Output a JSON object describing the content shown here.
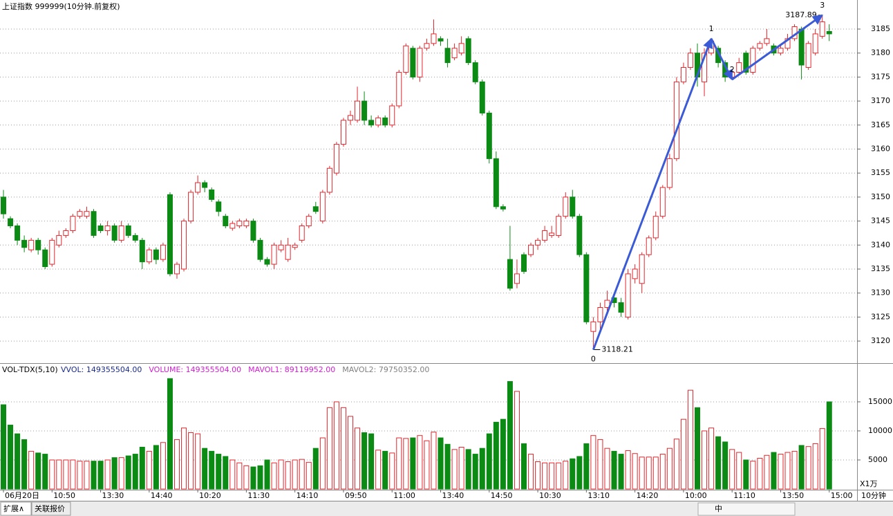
{
  "chart_data": {
    "type": "candlestick",
    "title": "上证指数 999999(10分钟.前复权)",
    "categories": [
      "06月20日",
      null,
      null,
      null,
      null,
      null,
      null,
      "10:50",
      null,
      null,
      null,
      null,
      null,
      null,
      "13:30",
      null,
      null,
      null,
      null,
      null,
      null,
      "14:40",
      null,
      null,
      null,
      null,
      null,
      null,
      "10:20",
      null,
      null,
      null,
      null,
      null,
      null,
      "11:30",
      null,
      null,
      null,
      null,
      null,
      null,
      "14:10",
      null,
      null,
      null,
      null,
      null,
      null,
      "09:50",
      null,
      null,
      null,
      null,
      null,
      null,
      "11:00",
      null,
      null,
      null,
      null,
      null,
      null,
      "13:40",
      null,
      null,
      null,
      null,
      null,
      null,
      "14:50",
      null,
      null,
      null,
      null,
      null,
      null,
      "10:30",
      null,
      null,
      null,
      null,
      null,
      null,
      "13:10",
      null,
      null,
      null,
      null,
      null,
      null,
      "14:20",
      null,
      null,
      null,
      null,
      null,
      null,
      "10:00",
      null,
      null,
      null,
      null,
      null,
      null,
      "11:10",
      null,
      null,
      null,
      null,
      null,
      null,
      "13:50",
      null,
      null,
      null,
      null,
      null,
      null,
      "15:00"
    ],
    "open": [
      3150,
      3145.5,
      3144,
      3141,
      3139,
      3141,
      3139,
      3136,
      3140,
      3142,
      3143,
      3146,
      3146,
      3147,
      3144,
      3143,
      3144,
      3141,
      3144,
      3142,
      3141,
      3136.5,
      3139,
      3137,
      3150.5,
      3134,
      3135,
      3145,
      3151,
      3153,
      3151.5,
      3149,
      3146,
      3143.5,
      3144,
      3144,
      3145,
      3141,
      3137,
      3136,
      3139,
      3137,
      3139.5,
      3141,
      3144,
      3148,
      3145,
      3151,
      3155,
      3161,
      3166,
      3166,
      3170,
      3166,
      3165,
      3166.5,
      3165,
      3169,
      3176,
      3181,
      3175,
      3181,
      3182,
      3183,
      3181,
      3179,
      3180,
      3183,
      3178,
      3174,
      3167.5,
      3158,
      3148,
      3137,
      3132,
      3138,
      3138,
      3140,
      3141,
      3142,
      3142,
      3146,
      3150,
      3146,
      3138,
      3122,
      3124,
      3127,
      3129,
      3128,
      3125,
      3133,
      3132,
      3138,
      3141.5,
      3146,
      3152,
      3158,
      3174,
      3177,
      3180,
      3174,
      3180,
      3181,
      3178,
      3175,
      3176,
      3180,
      3176,
      3181,
      3182,
      3181.5,
      3180,
      3181,
      3183,
      3185,
      3177,
      3180,
      3183.5,
      3184.5
    ],
    "high": [
      3151.5,
      3146,
      3144.5,
      3142,
      3141.5,
      3141.5,
      3139.5,
      3141.5,
      3143,
      3143.5,
      3146.5,
      3147.5,
      3148,
      3147.5,
      3144.5,
      3145,
      3144.5,
      3145,
      3144.5,
      3142.5,
      3141.5,
      3139.5,
      3139.5,
      3140.5,
      3151,
      3136.5,
      3145.5,
      3151.5,
      3154.5,
      3153.5,
      3152,
      3149.5,
      3146.5,
      3145,
      3145.5,
      3145.5,
      3145.5,
      3141.5,
      3137.5,
      3140.5,
      3141,
      3141.5,
      3140.5,
      3144.5,
      3146.5,
      3149,
      3151.5,
      3156.5,
      3161.5,
      3166.5,
      3168,
      3173,
      3172,
      3167,
      3167,
      3167,
      3169.5,
      3176.5,
      3182,
      3181.5,
      3181.5,
      3183,
      3187,
      3183.5,
      3183,
      3182,
      3183.5,
      3183.5,
      3178.5,
      3174.5,
      3168,
      3159.5,
      3148.5,
      3144,
      3137,
      3138.5,
      3140.5,
      3141.5,
      3144,
      3144,
      3146.5,
      3151,
      3151.5,
      3146.5,
      3138.5,
      3125,
      3128,
      3130.5,
      3129.5,
      3129,
      3135,
      3136,
      3138.5,
      3142,
      3147,
      3152.5,
      3159,
      3175,
      3178,
      3181,
      3182,
      3181,
      3183,
      3181.5,
      3178.5,
      3176.5,
      3179,
      3180.5,
      3181.5,
      3182.5,
      3185,
      3182,
      3181.5,
      3184,
      3186,
      3185.5,
      3182.5,
      3185,
      3187.89,
      3186
    ],
    "low": [
      3145.5,
      3143.5,
      3140,
      3138.5,
      3138.5,
      3138,
      3135,
      3135.5,
      3139.5,
      3141.5,
      3142.5,
      3145.5,
      3145.5,
      3141.5,
      3142.5,
      3142,
      3140.5,
      3140.5,
      3141.5,
      3140.5,
      3135,
      3136,
      3136,
      3136.5,
      3133.5,
      3133,
      3134.5,
      3144.5,
      3150.5,
      3151,
      3149,
      3146,
      3143.5,
      3143,
      3143.5,
      3143.5,
      3140.5,
      3136.5,
      3135.5,
      3135,
      3138.5,
      3136.5,
      3139,
      3140.5,
      3143.5,
      3146.5,
      3144.5,
      3150.5,
      3154.5,
      3160.5,
      3165,
      3165.5,
      3165,
      3164.5,
      3164.5,
      3164.5,
      3164.5,
      3168.5,
      3175.5,
      3174.5,
      3174,
      3180.5,
      3181.5,
      3181.5,
      3177,
      3178.5,
      3179.5,
      3177.5,
      3173.5,
      3167,
      3157,
      3147.5,
      3147,
      3130.5,
      3131,
      3134,
      3137.5,
      3139,
      3140.5,
      3141.5,
      3141.5,
      3145.5,
      3145.5,
      3137.5,
      3123.5,
      3118.21,
      3122,
      3126,
      3127,
      3125,
      3124.5,
      3132,
      3130,
      3137.5,
      3141,
      3145.5,
      3151.5,
      3157.5,
      3173.5,
      3176.5,
      3173,
      3171,
      3179.5,
      3177,
      3174,
      3174.5,
      3175.5,
      3175.5,
      3175.5,
      3180.5,
      3181.5,
      3179.5,
      3179.5,
      3180.5,
      3182.5,
      3174.5,
      3176.5,
      3179.5,
      3183,
      3182.5
    ],
    "close": [
      3146.5,
      3144,
      3141,
      3139.5,
      3141,
      3139,
      3135.5,
      3141,
      3142,
      3143,
      3146,
      3147,
      3147,
      3142,
      3143,
      3144,
      3141,
      3144,
      3142,
      3141,
      3136.5,
      3139,
      3137,
      3140,
      3134,
      3136,
      3145,
      3151,
      3153,
      3152,
      3149.5,
      3147,
      3144,
      3144.5,
      3145,
      3145,
      3141,
      3137,
      3136,
      3140,
      3140,
      3140,
      3140,
      3144,
      3146,
      3147,
      3151,
      3156,
      3161,
      3166,
      3167,
      3170,
      3166,
      3165,
      3166.5,
      3165,
      3169,
      3176,
      3181.5,
      3175,
      3181,
      3182,
      3184,
      3182.5,
      3178,
      3181,
      3182,
      3178,
      3174,
      3167.5,
      3158,
      3148,
      3147.5,
      3131,
      3134,
      3134.5,
      3140,
      3141,
      3143,
      3142.5,
      3146,
      3150,
      3146,
      3138,
      3124,
      3124,
      3127,
      3128.5,
      3128,
      3126,
      3134,
      3135,
      3138,
      3141.5,
      3146,
      3152,
      3158,
      3174,
      3177,
      3180,
      3175,
      3180,
      3182.5,
      3178,
      3175,
      3176,
      3178,
      3176,
      3181,
      3182,
      3183,
      3180,
      3181,
      3183,
      3185.5,
      3177.5,
      3182,
      3184,
      3186.5,
      3184
    ],
    "ylim": [
      3115.4,
      3188.46
    ],
    "yticks": [
      3120,
      3125,
      3130,
      3135,
      3140,
      3145,
      3150,
      3155,
      3160,
      3165,
      3170,
      3175,
      3180,
      3185
    ],
    "grid": true,
    "up_color": "#e3262c",
    "down_color": "#0b8a14",
    "price_labels": [
      {
        "value": 3118.21,
        "x": 85
      },
      {
        "value": 3187.89,
        "x": 118
      }
    ],
    "waves": [
      {
        "label": "0",
        "x": 85,
        "y": 3118.21
      },
      {
        "label": "1",
        "x": 102,
        "y": 3183
      },
      {
        "label": "2",
        "x": 105,
        "y": 3174.5
      },
      {
        "label": "3",
        "x": 118,
        "y": 3187.89
      }
    ],
    "wave_color": "#3b5bd6",
    "volume_panel": {
      "indicator": "VOL-TDX(5,10)",
      "readouts": [
        {
          "text": "VVOL: 149355504.00",
          "color": "#1a2a8a"
        },
        {
          "text": "VOLUME: 149355504.00",
          "color": "#d020d0"
        },
        {
          "text": "MAVOL1: 89119952.00",
          "color": "#d020d0"
        },
        {
          "text": "MAVOL2: 79750352.00",
          "color": "#808080"
        }
      ],
      "values": [
        14500,
        11000,
        9500,
        8500,
        6500,
        6200,
        6000,
        5000,
        5000,
        5000,
        5000,
        4800,
        4800,
        4800,
        4800,
        5000,
        5400,
        5400,
        5700,
        6000,
        7200,
        6500,
        7500,
        8000,
        19000,
        8500,
        10500,
        9700,
        9500,
        7000,
        6500,
        6000,
        5600,
        5000,
        4500,
        4000,
        3800,
        4000,
        5000,
        4500,
        5000,
        4700,
        5000,
        5100,
        4600,
        7000,
        8800,
        14000,
        15000,
        14000,
        12500,
        10500,
        9700,
        9500,
        6700,
        6500,
        6200,
        8800,
        8700,
        8800,
        9200,
        8300,
        9800,
        8800,
        7700,
        6800,
        7200,
        6800,
        6000,
        7000,
        9500,
        11500,
        12000,
        18500,
        16800,
        7800,
        6000,
        4700,
        4500,
        4500,
        4500,
        4800,
        5200,
        5600,
        7800,
        9200,
        8500,
        7000,
        6500,
        6000,
        6600,
        6100,
        5500,
        5500,
        5500,
        6000,
        7000,
        8600,
        12000,
        17000,
        14000,
        10000,
        10500,
        9000,
        8100,
        6800,
        6300,
        5000,
        4800,
        5300,
        5800,
        6300,
        6000,
        6300,
        6500,
        7500,
        7300,
        7800,
        10400,
        15000
      ],
      "ylim": [
        0,
        21300
      ],
      "yticks": [
        5000,
        10000,
        15000
      ],
      "unit": "X1万"
    },
    "period": "10分钟"
  },
  "tabs": [
    "扩展∧",
    "关联报价"
  ],
  "toolbar": "中"
}
